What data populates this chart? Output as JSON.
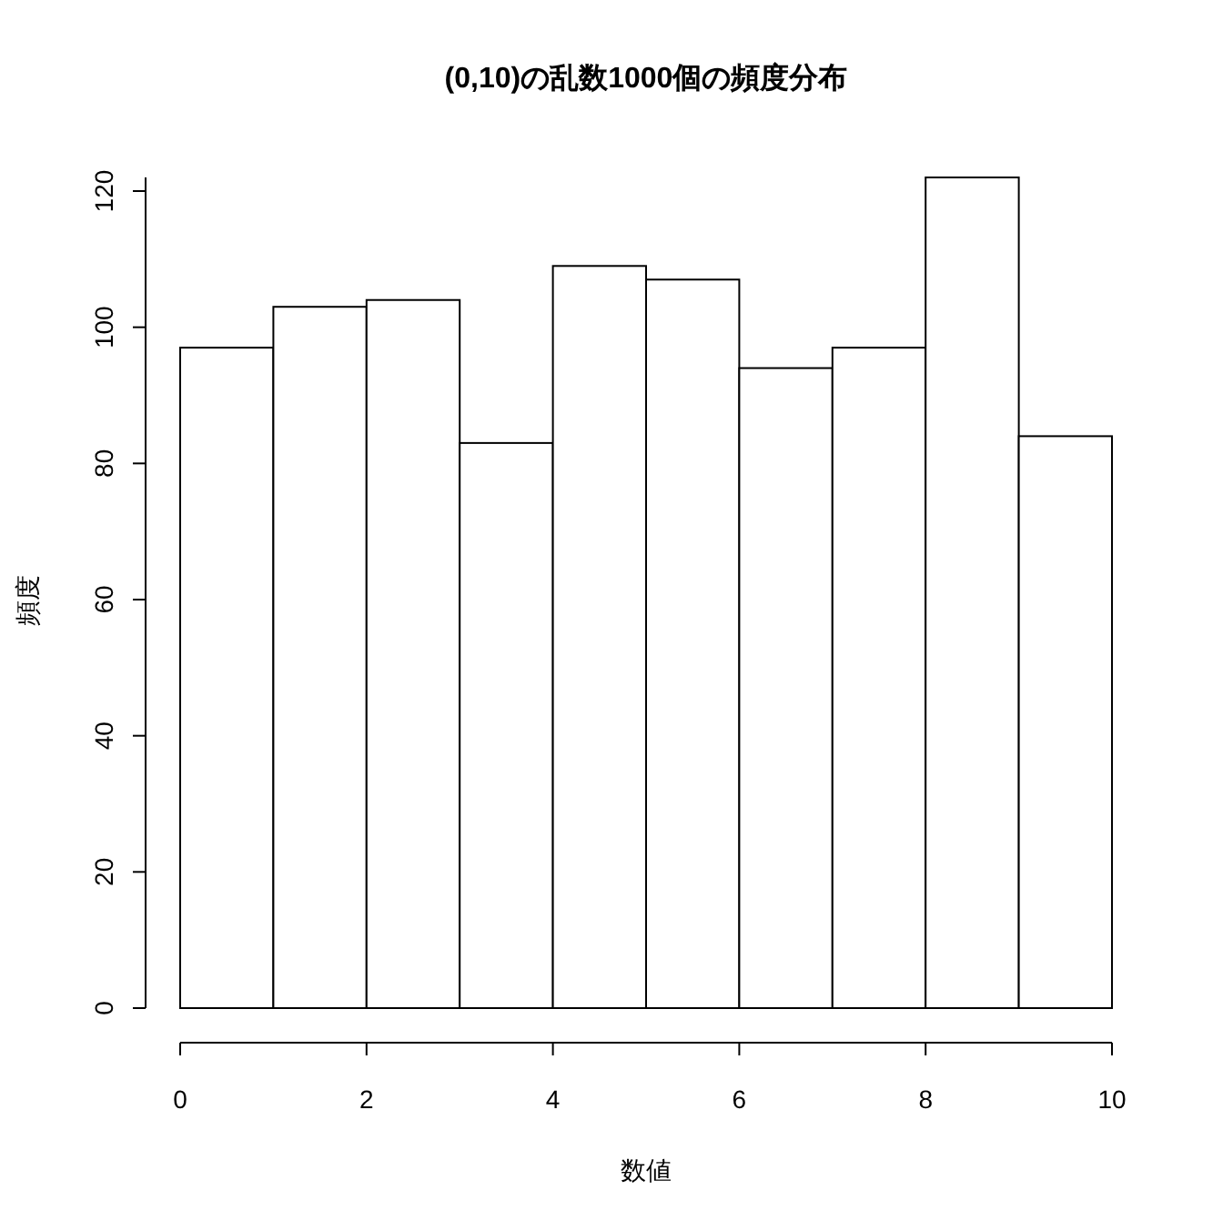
{
  "chart_data": {
    "type": "histogram",
    "title": "(0,10)の乱数1000個の頻度分布",
    "xlabel": "数値",
    "ylabel": "頻度",
    "bins": [
      0,
      1,
      2,
      3,
      4,
      5,
      6,
      7,
      8,
      9,
      10
    ],
    "values": [
      97,
      103,
      104,
      83,
      109,
      107,
      94,
      97,
      122,
      84
    ],
    "color": "#ffffff",
    "xlim": [
      0,
      10
    ],
    "xticks": [
      0,
      2,
      4,
      6,
      8,
      10
    ],
    "ylim": [
      0,
      122
    ],
    "yticks": [
      0,
      20,
      40,
      60,
      80,
      100,
      120
    ],
    "grid": false
  }
}
